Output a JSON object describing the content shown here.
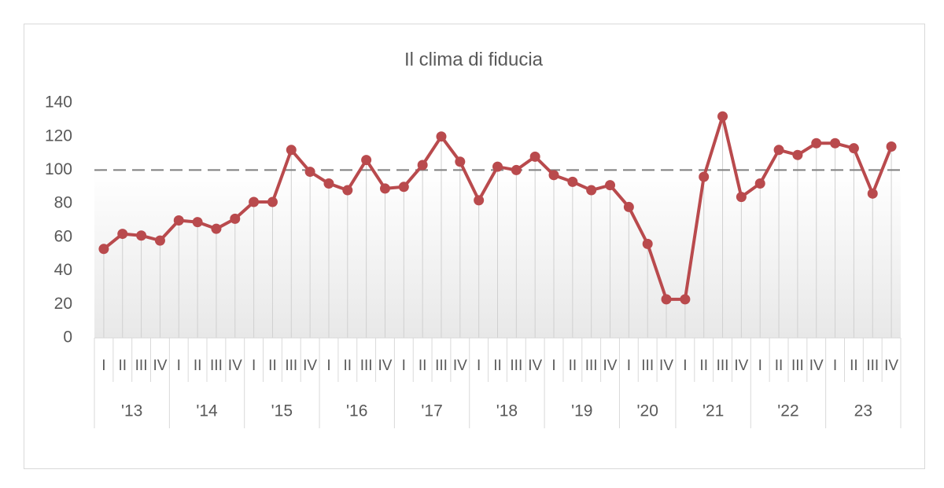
{
  "chart_data": {
    "type": "line",
    "title": "Il clima di fiducia",
    "groups": [
      {
        "label": "'13",
        "categories": [
          "I",
          "II",
          "III",
          "IV"
        ]
      },
      {
        "label": "'14",
        "categories": [
          "I",
          "II",
          "III",
          "IV"
        ]
      },
      {
        "label": "'15",
        "categories": [
          "I",
          "II",
          "III",
          "IV"
        ]
      },
      {
        "label": "'16",
        "categories": [
          "I",
          "II",
          "III",
          "IV"
        ]
      },
      {
        "label": "'17",
        "categories": [
          "I",
          "II",
          "III",
          "IV"
        ]
      },
      {
        "label": "'18",
        "categories": [
          "I",
          "II",
          "III",
          "IV"
        ]
      },
      {
        "label": "'19",
        "categories": [
          "I",
          "II",
          "III",
          "IV"
        ]
      },
      {
        "label": "'20",
        "categories": [
          "I",
          "III",
          "IV"
        ]
      },
      {
        "label": "'21",
        "categories": [
          "I",
          "II",
          "III",
          "IV"
        ]
      },
      {
        "label": "'22",
        "categories": [
          "I",
          "II",
          "III",
          "IV"
        ]
      },
      {
        "label": "23",
        "categories": [
          "I",
          "II",
          "III",
          "IV"
        ]
      }
    ],
    "values": [
      53,
      62,
      61,
      58,
      70,
      69,
      65,
      71,
      81,
      81,
      112,
      99,
      92,
      88,
      106,
      89,
      90,
      103,
      120,
      105,
      82,
      102,
      100,
      108,
      97,
      93,
      88,
      91,
      78,
      56,
      23,
      23,
      96,
      132,
      84,
      92,
      112,
      109,
      116,
      116,
      113,
      86,
      114
    ],
    "color": "#b94a4d",
    "reference_line": 100,
    "ylim": [
      0,
      140
    ],
    "yticks": [
      0,
      20,
      40,
      60,
      80,
      100,
      120,
      140
    ]
  }
}
